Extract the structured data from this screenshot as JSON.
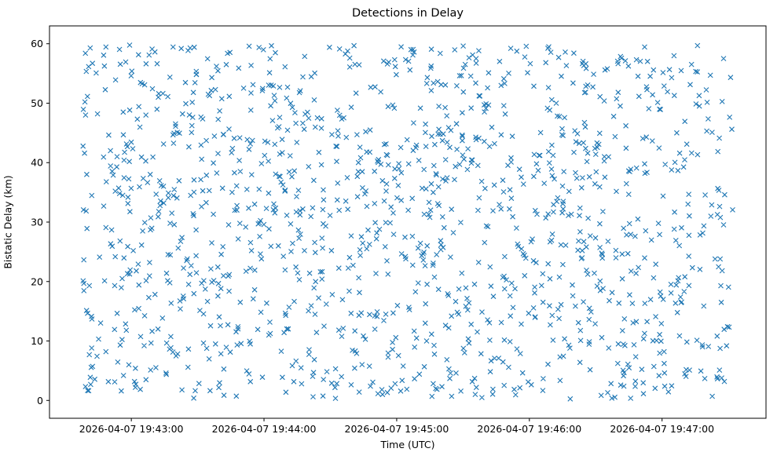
{
  "figure": {
    "kind": "matplotlib-scatter-figure"
  },
  "chart_data": {
    "type": "scatter",
    "title": "Detections in Delay",
    "xlabel": "Time (UTC)",
    "ylabel": "Bistatic Delay (km)",
    "x_tick_labels": [
      "2026-04-07 19:43:00",
      "2026-04-07 19:44:00",
      "2026-04-07 19:45:00",
      "2026-04-07 19:46:00",
      "2026-04-07 19:47:00"
    ],
    "x_tick_offsets_s": [
      37,
      97,
      157,
      217,
      277
    ],
    "x_span_s": 324,
    "x_data_range_s": [
      15,
      309
    ],
    "y_ticks": [
      0,
      10,
      20,
      30,
      40,
      50,
      60
    ],
    "y_tick_labels": [
      "0",
      "10",
      "20",
      "30",
      "40",
      "50",
      "60"
    ],
    "ylim": [
      -3,
      63
    ],
    "y_data_range": [
      0.2,
      59.8
    ],
    "n_points": 1400,
    "distribution": "uniform-random",
    "marker": "x",
    "marker_size_px": 6,
    "marker_color": "#1f77b4",
    "axes_color": "#000000",
    "background_color": "#ffffff",
    "grid": false,
    "legend": "none",
    "seed": 7
  }
}
